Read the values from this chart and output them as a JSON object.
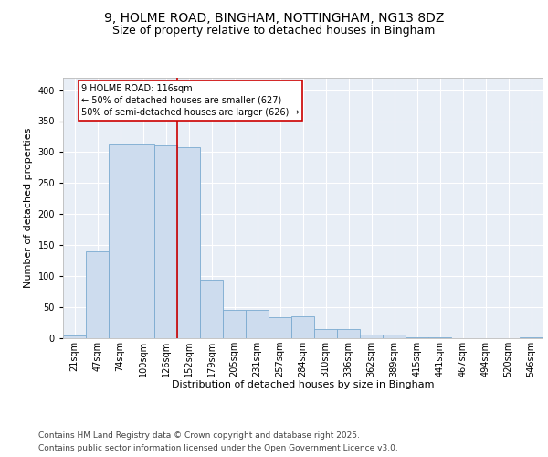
{
  "title1": "9, HOLME ROAD, BINGHAM, NOTTINGHAM, NG13 8DZ",
  "title2": "Size of property relative to detached houses in Bingham",
  "xlabel": "Distribution of detached houses by size in Bingham",
  "ylabel": "Number of detached properties",
  "bar_color": "#cddcee",
  "bar_edge_color": "#7aaad0",
  "background_color": "#e8eef6",
  "grid_color": "#ffffff",
  "annotation_box_color": "#cc0000",
  "annotation_line1": "9 HOLME ROAD: 116sqm",
  "annotation_line2": "← 50% of detached houses are smaller (627)",
  "annotation_line3": "50% of semi-detached houses are larger (626) →",
  "vline_x": 4.5,
  "vline_color": "#cc0000",
  "categories": [
    "21sqm",
    "47sqm",
    "74sqm",
    "100sqm",
    "126sqm",
    "152sqm",
    "179sqm",
    "205sqm",
    "231sqm",
    "257sqm",
    "284sqm",
    "310sqm",
    "336sqm",
    "362sqm",
    "389sqm",
    "415sqm",
    "441sqm",
    "467sqm",
    "494sqm",
    "520sqm",
    "546sqm"
  ],
  "values": [
    4,
    140,
    312,
    312,
    311,
    308,
    95,
    46,
    45,
    34,
    35,
    15,
    15,
    6,
    6,
    1,
    1,
    0,
    0,
    0,
    2
  ],
  "ylim": [
    0,
    420
  ],
  "yticks": [
    0,
    50,
    100,
    150,
    200,
    250,
    300,
    350,
    400
  ],
  "footer1": "Contains HM Land Registry data © Crown copyright and database right 2025.",
  "footer2": "Contains public sector information licensed under the Open Government Licence v3.0.",
  "title1_fontsize": 10,
  "title2_fontsize": 9,
  "axis_label_fontsize": 8,
  "tick_fontsize": 7,
  "annotation_fontsize": 7,
  "footer_fontsize": 6.5
}
